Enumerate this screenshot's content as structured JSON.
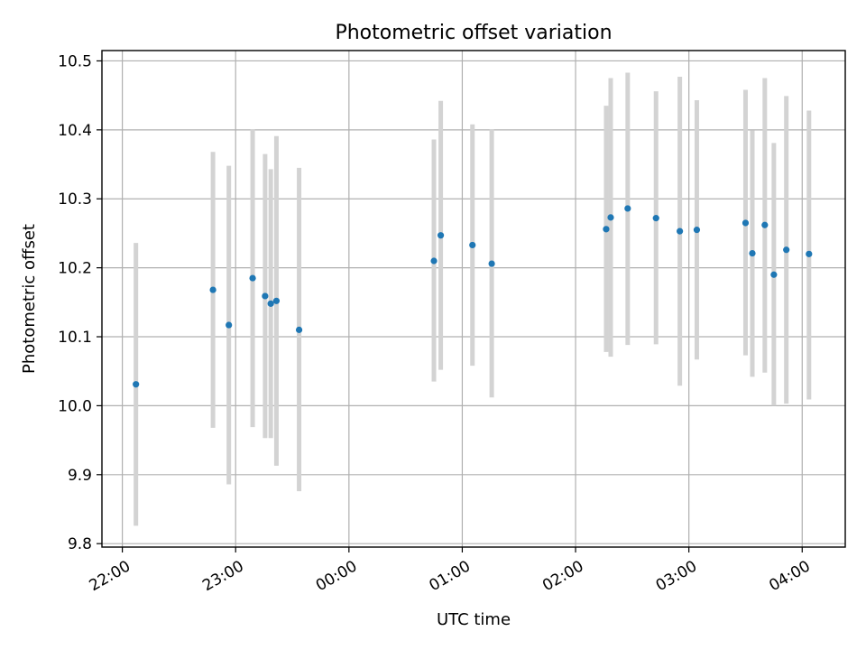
{
  "chart_data": {
    "type": "scatter",
    "title": "Photometric offset variation",
    "xlabel": "UTC time",
    "ylabel": "Photometric offset",
    "x_unit": "hours (UTC, relative to 00:00; negative = previous day)",
    "xlim": [
      -2.18,
      4.38
    ],
    "ylim": [
      9.795,
      10.515
    ],
    "x_ticks": [
      {
        "value": -2,
        "label": "22:00"
      },
      {
        "value": -1,
        "label": "23:00"
      },
      {
        "value": 0,
        "label": "00:00"
      },
      {
        "value": 1,
        "label": "01:00"
      },
      {
        "value": 2,
        "label": "02:00"
      },
      {
        "value": 3,
        "label": "03:00"
      },
      {
        "value": 4,
        "label": "04:00"
      }
    ],
    "y_ticks": [
      9.8,
      9.9,
      10.0,
      10.1,
      10.2,
      10.3,
      10.4,
      10.5
    ],
    "grid": true,
    "point_color": "#1f77b4",
    "errorbar_color": "#d3d3d3",
    "points": [
      {
        "time": "22:07",
        "x": -1.88,
        "y": 10.031,
        "lo": 9.826,
        "hi": 10.236
      },
      {
        "time": "22:48",
        "x": -1.2,
        "y": 10.168,
        "lo": 9.968,
        "hi": 10.368
      },
      {
        "time": "22:56",
        "x": -1.06,
        "y": 10.117,
        "lo": 9.886,
        "hi": 10.348
      },
      {
        "time": "23:09",
        "x": -0.85,
        "y": 10.185,
        "lo": 9.969,
        "hi": 10.401
      },
      {
        "time": "23:16",
        "x": -0.74,
        "y": 10.159,
        "lo": 9.953,
        "hi": 10.365
      },
      {
        "time": "23:18",
        "x": -0.69,
        "y": 10.148,
        "lo": 9.953,
        "hi": 10.343
      },
      {
        "time": "23:21",
        "x": -0.64,
        "y": 10.152,
        "lo": 9.913,
        "hi": 10.391
      },
      {
        "time": "23:34",
        "x": -0.44,
        "y": 10.11,
        "lo": 9.876,
        "hi": 10.345
      },
      {
        "time": "00:45",
        "x": 0.75,
        "y": 10.21,
        "lo": 10.035,
        "hi": 10.386
      },
      {
        "time": "00:49",
        "x": 0.81,
        "y": 10.247,
        "lo": 10.052,
        "hi": 10.442
      },
      {
        "time": "01:05",
        "x": 1.09,
        "y": 10.233,
        "lo": 10.058,
        "hi": 10.408
      },
      {
        "time": "01:15",
        "x": 1.26,
        "y": 10.206,
        "lo": 10.012,
        "hi": 10.401
      },
      {
        "time": "02:16",
        "x": 2.27,
        "y": 10.256,
        "lo": 10.078,
        "hi": 10.435
      },
      {
        "time": "02:18",
        "x": 2.31,
        "y": 10.273,
        "lo": 10.071,
        "hi": 10.475
      },
      {
        "time": "02:27",
        "x": 2.46,
        "y": 10.286,
        "lo": 10.088,
        "hi": 10.483
      },
      {
        "time": "02:42",
        "x": 2.71,
        "y": 10.272,
        "lo": 10.089,
        "hi": 10.456
      },
      {
        "time": "02:55",
        "x": 2.92,
        "y": 10.253,
        "lo": 10.029,
        "hi": 10.477
      },
      {
        "time": "03:04",
        "x": 3.07,
        "y": 10.255,
        "lo": 10.067,
        "hi": 10.443
      },
      {
        "time": "03:30",
        "x": 3.5,
        "y": 10.265,
        "lo": 10.073,
        "hi": 10.458
      },
      {
        "time": "03:33",
        "x": 3.56,
        "y": 10.221,
        "lo": 10.042,
        "hi": 10.399
      },
      {
        "time": "03:40",
        "x": 3.67,
        "y": 10.262,
        "lo": 10.048,
        "hi": 10.475
      },
      {
        "time": "03:45",
        "x": 3.75,
        "y": 10.19,
        "lo": 10.0,
        "hi": 10.381
      },
      {
        "time": "03:52",
        "x": 3.86,
        "y": 10.226,
        "lo": 10.003,
        "hi": 10.449
      },
      {
        "time": "04:03",
        "x": 4.06,
        "y": 10.22,
        "lo": 10.009,
        "hi": 10.428
      }
    ]
  }
}
